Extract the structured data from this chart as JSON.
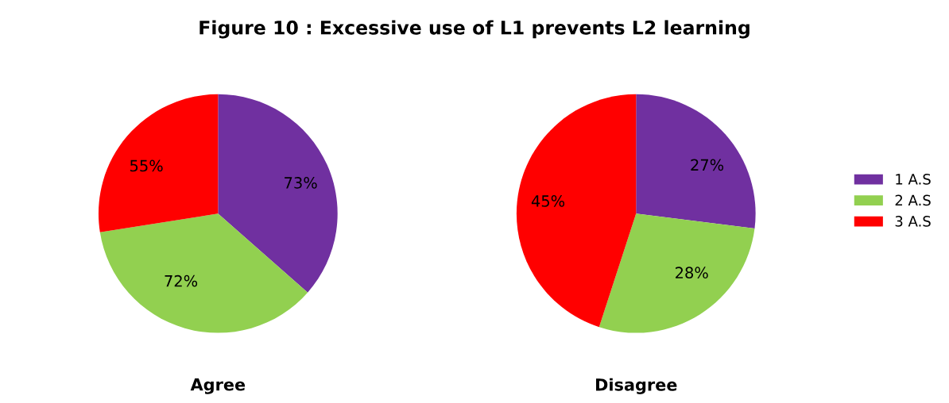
{
  "chart_data": [
    {
      "type": "pie",
      "title": "Figure 10 : Excessive use of L1 prevents L2 learning",
      "xlabel": "Agree",
      "categories": [
        "1 A.S",
        "2 A.S",
        "3 A.S"
      ],
      "values": [
        73,
        72,
        55
      ],
      "colors": [
        "#7030a0",
        "#92d050",
        "#ff0000"
      ],
      "value_labels": [
        "73%",
        "72%",
        "55%"
      ],
      "legend": "right"
    },
    {
      "type": "pie",
      "xlabel": "Disagree",
      "categories": [
        null,
        null,
        null
      ],
      "values": [
        27,
        28,
        45
      ],
      "colors": [
        "#7030a0",
        "#92d050",
        "#ff0000"
      ],
      "value_labels": [
        "27%",
        "28%",
        "45%"
      ]
    }
  ]
}
